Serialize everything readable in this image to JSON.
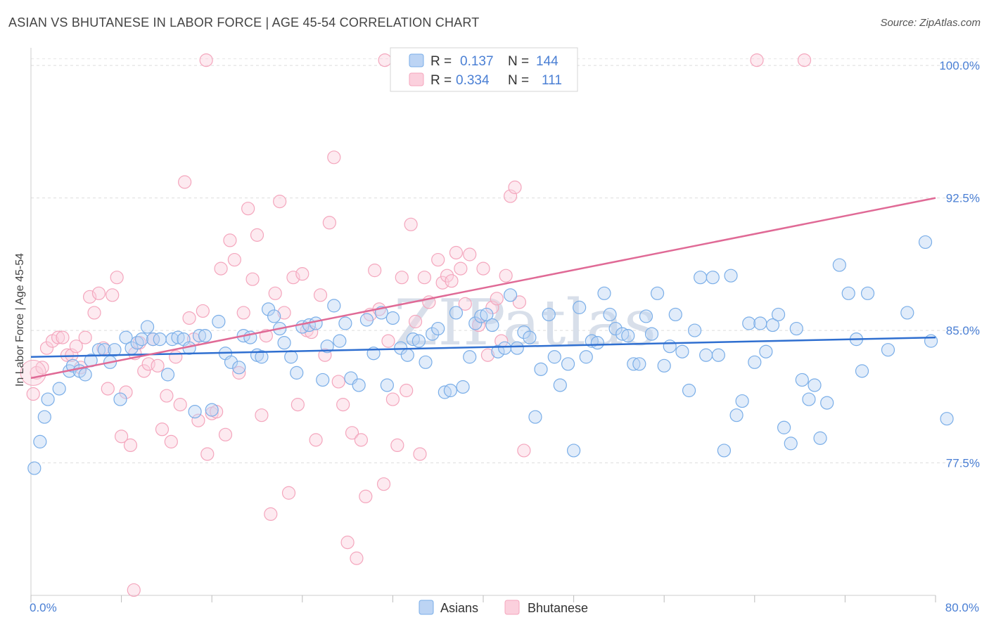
{
  "title": "ASIAN VS BHUTANESE IN LABOR FORCE | AGE 45-54 CORRELATION CHART",
  "source": "Source: ZipAtlas.com",
  "watermark": "ZIPatlas",
  "chart_data": {
    "type": "scatter",
    "ylabel": "In Labor Force | Age 45-54",
    "xlim": [
      0,
      80
    ],
    "ylim": [
      70,
      101
    ],
    "x_tick_labels": [
      "0.0%",
      "80.0%"
    ],
    "y_ticks": [
      77.5,
      85.0,
      92.5,
      100.0
    ],
    "y_tick_labels": [
      "77.5%",
      "85.0%",
      "92.5%",
      "100.0%"
    ],
    "grid": true,
    "legend_placement": "top-center",
    "legend": [
      {
        "r_label": "R =",
        "r_value": "0.137",
        "n_label": "N =",
        "n_value": "144"
      },
      {
        "r_label": "R =",
        "r_value": "0.334",
        "n_label": "N =",
        "n_value": "111"
      }
    ],
    "series": [
      {
        "name": "Asians",
        "color": "#7aaee8",
        "line_color": "#2f6fd0",
        "trend": {
          "x": [
            0,
            80
          ],
          "y": [
            83.5,
            84.6
          ]
        },
        "points": [
          [
            0.3,
            77.2
          ],
          [
            0.8,
            78.7
          ],
          [
            1.2,
            80.1
          ],
          [
            1.5,
            81.1
          ],
          [
            2.5,
            81.7
          ],
          [
            3.4,
            82.7
          ],
          [
            3.7,
            83.0
          ],
          [
            4.3,
            82.7
          ],
          [
            4.8,
            82.5
          ],
          [
            5.3,
            83.3
          ],
          [
            6.0,
            83.9
          ],
          [
            6.5,
            83.9
          ],
          [
            7.0,
            83.2
          ],
          [
            7.4,
            83.9
          ],
          [
            7.9,
            81.1
          ],
          [
            8.4,
            84.6
          ],
          [
            8.9,
            84.0
          ],
          [
            9.4,
            84.3
          ],
          [
            9.8,
            84.5
          ],
          [
            10.3,
            85.2
          ],
          [
            10.8,
            84.5
          ],
          [
            11.4,
            84.5
          ],
          [
            12.1,
            82.5
          ],
          [
            12.5,
            84.5
          ],
          [
            13.0,
            84.6
          ],
          [
            13.5,
            84.5
          ],
          [
            14.0,
            84.0
          ],
          [
            14.5,
            80.4
          ],
          [
            14.9,
            84.7
          ],
          [
            15.4,
            84.7
          ],
          [
            16.0,
            80.5
          ],
          [
            16.6,
            85.5
          ],
          [
            17.2,
            83.7
          ],
          [
            17.7,
            83.2
          ],
          [
            18.4,
            82.9
          ],
          [
            18.8,
            84.7
          ],
          [
            19.4,
            84.6
          ],
          [
            20.0,
            83.6
          ],
          [
            20.4,
            83.5
          ],
          [
            21.0,
            86.2
          ],
          [
            21.5,
            85.8
          ],
          [
            22.0,
            85.1
          ],
          [
            22.4,
            84.3
          ],
          [
            23.0,
            83.5
          ],
          [
            23.5,
            82.6
          ],
          [
            24.0,
            85.2
          ],
          [
            24.6,
            85.3
          ],
          [
            25.2,
            85.4
          ],
          [
            25.8,
            82.2
          ],
          [
            26.2,
            84.1
          ],
          [
            26.8,
            86.4
          ],
          [
            27.3,
            84.4
          ],
          [
            27.8,
            85.4
          ],
          [
            28.3,
            82.3
          ],
          [
            29.0,
            81.9
          ],
          [
            29.7,
            85.6
          ],
          [
            30.3,
            83.7
          ],
          [
            31.0,
            86.0
          ],
          [
            31.5,
            81.9
          ],
          [
            32.0,
            85.7
          ],
          [
            32.7,
            84.0
          ],
          [
            33.3,
            83.6
          ],
          [
            33.8,
            84.5
          ],
          [
            34.3,
            84.4
          ],
          [
            34.9,
            83.2
          ],
          [
            35.5,
            84.8
          ],
          [
            36.0,
            85.1
          ],
          [
            36.6,
            81.5
          ],
          [
            37.1,
            81.6
          ],
          [
            37.6,
            86.0
          ],
          [
            38.2,
            81.8
          ],
          [
            38.8,
            83.5
          ],
          [
            39.3,
            85.4
          ],
          [
            39.8,
            85.8
          ],
          [
            40.3,
            85.9
          ],
          [
            40.8,
            85.3
          ],
          [
            41.3,
            83.8
          ],
          [
            41.9,
            84.0
          ],
          [
            42.4,
            87.0
          ],
          [
            43.0,
            84.0
          ],
          [
            43.6,
            84.9
          ],
          [
            44.1,
            84.6
          ],
          [
            44.6,
            80.1
          ],
          [
            45.1,
            82.8
          ],
          [
            45.8,
            85.9
          ],
          [
            46.3,
            83.5
          ],
          [
            46.8,
            81.9
          ],
          [
            47.5,
            83.1
          ],
          [
            48.0,
            78.2
          ],
          [
            48.5,
            86.3
          ],
          [
            49.1,
            83.5
          ],
          [
            49.6,
            84.4
          ],
          [
            50.1,
            84.3
          ],
          [
            50.7,
            87.1
          ],
          [
            51.2,
            85.9
          ],
          [
            51.7,
            85.1
          ],
          [
            52.3,
            84.8
          ],
          [
            52.8,
            84.7
          ],
          [
            53.3,
            83.1
          ],
          [
            53.8,
            83.1
          ],
          [
            54.4,
            85.8
          ],
          [
            54.9,
            84.8
          ],
          [
            55.4,
            87.1
          ],
          [
            56.0,
            83.0
          ],
          [
            56.5,
            84.1
          ],
          [
            57.0,
            85.9
          ],
          [
            57.6,
            83.8
          ],
          [
            58.2,
            81.6
          ],
          [
            58.7,
            85.0
          ],
          [
            59.2,
            88.0
          ],
          [
            59.7,
            83.6
          ],
          [
            60.3,
            88.0
          ],
          [
            60.8,
            83.6
          ],
          [
            61.3,
            78.2
          ],
          [
            61.9,
            88.1
          ],
          [
            62.4,
            80.2
          ],
          [
            62.9,
            81.0
          ],
          [
            63.5,
            85.4
          ],
          [
            64.0,
            83.2
          ],
          [
            64.5,
            85.4
          ],
          [
            65.0,
            83.8
          ],
          [
            65.6,
            85.3
          ],
          [
            66.1,
            85.9
          ],
          [
            66.6,
            79.5
          ],
          [
            67.2,
            78.6
          ],
          [
            67.7,
            85.1
          ],
          [
            68.2,
            82.2
          ],
          [
            68.8,
            81.1
          ],
          [
            69.3,
            81.9
          ],
          [
            69.8,
            78.9
          ],
          [
            70.4,
            80.9
          ],
          [
            71.5,
            88.7
          ],
          [
            72.3,
            87.1
          ],
          [
            73.0,
            84.5
          ],
          [
            73.5,
            82.7
          ],
          [
            74.0,
            87.1
          ],
          [
            75.8,
            83.9
          ],
          [
            77.5,
            86.0
          ],
          [
            79.1,
            90.0
          ],
          [
            79.6,
            84.4
          ],
          [
            81.0,
            80.0
          ]
        ]
      },
      {
        "name": "Bhutanese",
        "color": "#f4a6bd",
        "line_color": "#e06a96",
        "trend": {
          "x": [
            0,
            80
          ],
          "y": [
            82.3,
            92.5
          ]
        },
        "points": [
          [
            0.2,
            81.4
          ],
          [
            0.5,
            82.6
          ],
          [
            1.0,
            82.9
          ],
          [
            1.4,
            84.0
          ],
          [
            1.9,
            84.4
          ],
          [
            2.4,
            84.6
          ],
          [
            2.8,
            84.6
          ],
          [
            3.2,
            83.6
          ],
          [
            3.6,
            83.6
          ],
          [
            4.0,
            84.1
          ],
          [
            4.4,
            82.9
          ],
          [
            4.8,
            84.6
          ],
          [
            5.2,
            86.9
          ],
          [
            5.6,
            86.0
          ],
          [
            6.0,
            87.1
          ],
          [
            6.4,
            84.0
          ],
          [
            6.8,
            81.7
          ],
          [
            7.2,
            87.0
          ],
          [
            7.6,
            88.0
          ],
          [
            8.0,
            79.0
          ],
          [
            8.4,
            81.5
          ],
          [
            8.8,
            78.5
          ],
          [
            9.2,
            83.7
          ],
          [
            9.6,
            84.3
          ],
          [
            10.0,
            82.7
          ],
          [
            10.4,
            83.1
          ],
          [
            10.8,
            84.5
          ],
          [
            11.2,
            83.0
          ],
          [
            11.6,
            79.4
          ],
          [
            12.0,
            81.3
          ],
          [
            12.4,
            78.7
          ],
          [
            12.8,
            83.5
          ],
          [
            13.2,
            80.8
          ],
          [
            13.6,
            93.4
          ],
          [
            14.0,
            85.7
          ],
          [
            14.4,
            84.5
          ],
          [
            14.8,
            79.9
          ],
          [
            15.2,
            86.1
          ],
          [
            15.6,
            78.0
          ],
          [
            16.0,
            80.3
          ],
          [
            16.4,
            80.4
          ],
          [
            16.8,
            88.5
          ],
          [
            17.2,
            79.1
          ],
          [
            17.6,
            90.1
          ],
          [
            18.0,
            89.0
          ],
          [
            18.4,
            82.6
          ],
          [
            18.8,
            86.0
          ],
          [
            19.2,
            91.9
          ],
          [
            19.6,
            87.9
          ],
          [
            20.0,
            90.4
          ],
          [
            20.4,
            80.2
          ],
          [
            20.8,
            84.7
          ],
          [
            21.2,
            74.6
          ],
          [
            21.6,
            87.1
          ],
          [
            22.0,
            92.3
          ],
          [
            22.4,
            86.0
          ],
          [
            22.8,
            75.8
          ],
          [
            23.2,
            88.0
          ],
          [
            23.6,
            80.8
          ],
          [
            24.0,
            88.2
          ],
          [
            24.4,
            85.0
          ],
          [
            24.8,
            84.9
          ],
          [
            25.2,
            78.8
          ],
          [
            25.6,
            87.0
          ],
          [
            26.0,
            83.6
          ],
          [
            26.4,
            91.1
          ],
          [
            26.8,
            94.8
          ],
          [
            27.2,
            82.1
          ],
          [
            27.6,
            80.8
          ],
          [
            28.0,
            73.0
          ],
          [
            28.4,
            79.2
          ],
          [
            28.8,
            72.1
          ],
          [
            29.2,
            78.8
          ],
          [
            29.6,
            75.6
          ],
          [
            30.0,
            85.9
          ],
          [
            30.4,
            88.4
          ],
          [
            30.8,
            86.2
          ],
          [
            31.2,
            76.3
          ],
          [
            31.6,
            84.4
          ],
          [
            32.0,
            81.1
          ],
          [
            32.4,
            78.5
          ],
          [
            32.8,
            88.0
          ],
          [
            33.2,
            81.6
          ],
          [
            33.6,
            91.0
          ],
          [
            34.0,
            85.5
          ],
          [
            34.4,
            78.0
          ],
          [
            34.8,
            88.0
          ],
          [
            35.2,
            86.6
          ],
          [
            35.6,
            100.3
          ],
          [
            36.0,
            89.0
          ],
          [
            36.4,
            87.7
          ],
          [
            36.8,
            88.1
          ],
          [
            37.2,
            87.8
          ],
          [
            37.6,
            89.4
          ],
          [
            38.0,
            88.5
          ],
          [
            38.4,
            86.5
          ],
          [
            38.8,
            89.3
          ],
          [
            39.2,
            100.3
          ],
          [
            39.6,
            85.3
          ],
          [
            40.0,
            88.5
          ],
          [
            40.4,
            83.6
          ],
          [
            40.8,
            86.3
          ],
          [
            41.2,
            86.8
          ],
          [
            41.6,
            84.4
          ],
          [
            42.0,
            88.1
          ],
          [
            42.4,
            92.6
          ],
          [
            42.8,
            93.1
          ],
          [
            43.2,
            86.6
          ],
          [
            43.6,
            78.2
          ]
        ]
      }
    ],
    "extra_top_points": [
      [
        15.5,
        100.3
      ],
      [
        31.3,
        100.3
      ],
      [
        64.2,
        100.3
      ],
      [
        68.4,
        100.3
      ],
      [
        9.1,
        70.3
      ]
    ]
  },
  "bottom_legend": [
    "Asians",
    "Bhutanese"
  ]
}
